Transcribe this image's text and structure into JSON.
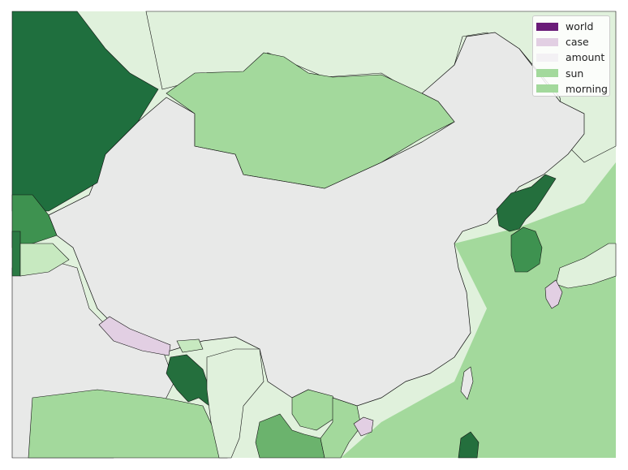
{
  "legend": {
    "items": [
      {
        "label": "world",
        "color": "#6a1b78"
      },
      {
        "label": "case",
        "color": "#e2cfe3"
      },
      {
        "label": "amount",
        "color": "#f3f1f4"
      },
      {
        "label": "sun",
        "color": "#a3d99c"
      },
      {
        "label": "morning",
        "color": "#a3d99c"
      }
    ]
  },
  "colors": {
    "background": "#ffffff",
    "sea": "#e0f1dc",
    "china": "#e8e9e8",
    "india": "#e8e9e8",
    "mongolia": "#a3d99c",
    "russia_west": "#1f6f3e",
    "north_korea": "#246f3d",
    "south_korea": "#3e9250",
    "japan": "#e0f1dc",
    "kyushu": "#e2cfe3",
    "nepal": "#e2cfe3",
    "hainan": "#e2cfe3",
    "bangladesh": "#246f3d",
    "myanmar": "#e0f1dc",
    "thailand": "#6bb36d",
    "vietnam_laos": "#a3d99c",
    "taiwan": "#e8e9e8",
    "philippines": "#246f3d",
    "central_asia": "#3e9250",
    "pacific": "#a3d99c",
    "border": "#111111"
  }
}
